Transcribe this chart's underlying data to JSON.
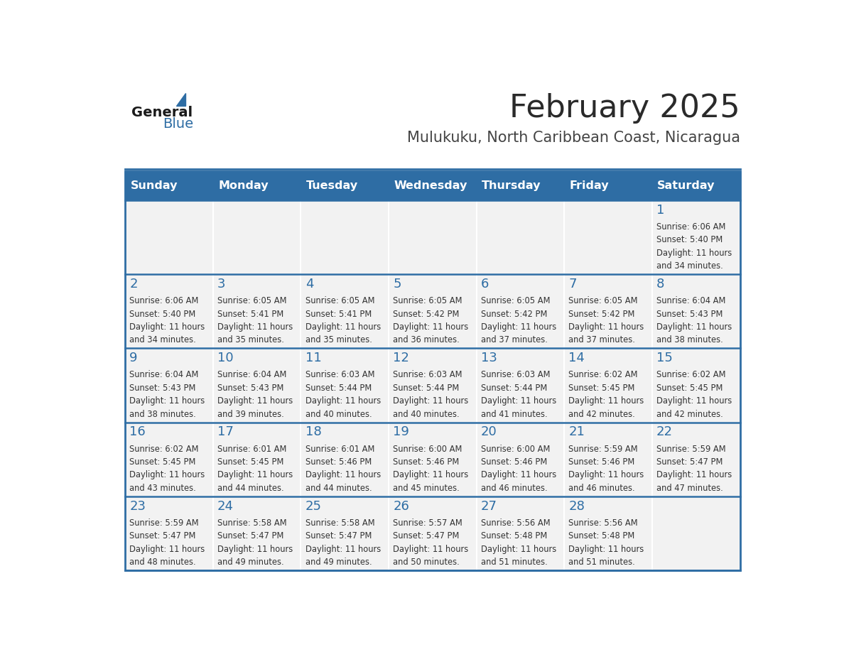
{
  "title": "February 2025",
  "subtitle": "Mulukuku, North Caribbean Coast, Nicaragua",
  "header_bg": "#2E6DA4",
  "header_text_color": "#FFFFFF",
  "cell_bg_light": "#F2F2F2",
  "cell_bg_white": "#FFFFFF",
  "day_number_color": "#2E6DA4",
  "info_text_color": "#333333",
  "border_color": "#2E6DA4",
  "days_of_week": [
    "Sunday",
    "Monday",
    "Tuesday",
    "Wednesday",
    "Thursday",
    "Friday",
    "Saturday"
  ],
  "weeks": [
    [
      {
        "day": "",
        "sunrise": "",
        "sunset": "",
        "daylight": ""
      },
      {
        "day": "",
        "sunrise": "",
        "sunset": "",
        "daylight": ""
      },
      {
        "day": "",
        "sunrise": "",
        "sunset": "",
        "daylight": ""
      },
      {
        "day": "",
        "sunrise": "",
        "sunset": "",
        "daylight": ""
      },
      {
        "day": "",
        "sunrise": "",
        "sunset": "",
        "daylight": ""
      },
      {
        "day": "",
        "sunrise": "",
        "sunset": "",
        "daylight": ""
      },
      {
        "day": "1",
        "sunrise": "Sunrise: 6:06 AM",
        "sunset": "Sunset: 5:40 PM",
        "daylight": "Daylight: 11 hours\nand 34 minutes."
      }
    ],
    [
      {
        "day": "2",
        "sunrise": "Sunrise: 6:06 AM",
        "sunset": "Sunset: 5:40 PM",
        "daylight": "Daylight: 11 hours\nand 34 minutes."
      },
      {
        "day": "3",
        "sunrise": "Sunrise: 6:05 AM",
        "sunset": "Sunset: 5:41 PM",
        "daylight": "Daylight: 11 hours\nand 35 minutes."
      },
      {
        "day": "4",
        "sunrise": "Sunrise: 6:05 AM",
        "sunset": "Sunset: 5:41 PM",
        "daylight": "Daylight: 11 hours\nand 35 minutes."
      },
      {
        "day": "5",
        "sunrise": "Sunrise: 6:05 AM",
        "sunset": "Sunset: 5:42 PM",
        "daylight": "Daylight: 11 hours\nand 36 minutes."
      },
      {
        "day": "6",
        "sunrise": "Sunrise: 6:05 AM",
        "sunset": "Sunset: 5:42 PM",
        "daylight": "Daylight: 11 hours\nand 37 minutes."
      },
      {
        "day": "7",
        "sunrise": "Sunrise: 6:05 AM",
        "sunset": "Sunset: 5:42 PM",
        "daylight": "Daylight: 11 hours\nand 37 minutes."
      },
      {
        "day": "8",
        "sunrise": "Sunrise: 6:04 AM",
        "sunset": "Sunset: 5:43 PM",
        "daylight": "Daylight: 11 hours\nand 38 minutes."
      }
    ],
    [
      {
        "day": "9",
        "sunrise": "Sunrise: 6:04 AM",
        "sunset": "Sunset: 5:43 PM",
        "daylight": "Daylight: 11 hours\nand 38 minutes."
      },
      {
        "day": "10",
        "sunrise": "Sunrise: 6:04 AM",
        "sunset": "Sunset: 5:43 PM",
        "daylight": "Daylight: 11 hours\nand 39 minutes."
      },
      {
        "day": "11",
        "sunrise": "Sunrise: 6:03 AM",
        "sunset": "Sunset: 5:44 PM",
        "daylight": "Daylight: 11 hours\nand 40 minutes."
      },
      {
        "day": "12",
        "sunrise": "Sunrise: 6:03 AM",
        "sunset": "Sunset: 5:44 PM",
        "daylight": "Daylight: 11 hours\nand 40 minutes."
      },
      {
        "day": "13",
        "sunrise": "Sunrise: 6:03 AM",
        "sunset": "Sunset: 5:44 PM",
        "daylight": "Daylight: 11 hours\nand 41 minutes."
      },
      {
        "day": "14",
        "sunrise": "Sunrise: 6:02 AM",
        "sunset": "Sunset: 5:45 PM",
        "daylight": "Daylight: 11 hours\nand 42 minutes."
      },
      {
        "day": "15",
        "sunrise": "Sunrise: 6:02 AM",
        "sunset": "Sunset: 5:45 PM",
        "daylight": "Daylight: 11 hours\nand 42 minutes."
      }
    ],
    [
      {
        "day": "16",
        "sunrise": "Sunrise: 6:02 AM",
        "sunset": "Sunset: 5:45 PM",
        "daylight": "Daylight: 11 hours\nand 43 minutes."
      },
      {
        "day": "17",
        "sunrise": "Sunrise: 6:01 AM",
        "sunset": "Sunset: 5:45 PM",
        "daylight": "Daylight: 11 hours\nand 44 minutes."
      },
      {
        "day": "18",
        "sunrise": "Sunrise: 6:01 AM",
        "sunset": "Sunset: 5:46 PM",
        "daylight": "Daylight: 11 hours\nand 44 minutes."
      },
      {
        "day": "19",
        "sunrise": "Sunrise: 6:00 AM",
        "sunset": "Sunset: 5:46 PM",
        "daylight": "Daylight: 11 hours\nand 45 minutes."
      },
      {
        "day": "20",
        "sunrise": "Sunrise: 6:00 AM",
        "sunset": "Sunset: 5:46 PM",
        "daylight": "Daylight: 11 hours\nand 46 minutes."
      },
      {
        "day": "21",
        "sunrise": "Sunrise: 5:59 AM",
        "sunset": "Sunset: 5:46 PM",
        "daylight": "Daylight: 11 hours\nand 46 minutes."
      },
      {
        "day": "22",
        "sunrise": "Sunrise: 5:59 AM",
        "sunset": "Sunset: 5:47 PM",
        "daylight": "Daylight: 11 hours\nand 47 minutes."
      }
    ],
    [
      {
        "day": "23",
        "sunrise": "Sunrise: 5:59 AM",
        "sunset": "Sunset: 5:47 PM",
        "daylight": "Daylight: 11 hours\nand 48 minutes."
      },
      {
        "day": "24",
        "sunrise": "Sunrise: 5:58 AM",
        "sunset": "Sunset: 5:47 PM",
        "daylight": "Daylight: 11 hours\nand 49 minutes."
      },
      {
        "day": "25",
        "sunrise": "Sunrise: 5:58 AM",
        "sunset": "Sunset: 5:47 PM",
        "daylight": "Daylight: 11 hours\nand 49 minutes."
      },
      {
        "day": "26",
        "sunrise": "Sunrise: 5:57 AM",
        "sunset": "Sunset: 5:47 PM",
        "daylight": "Daylight: 11 hours\nand 50 minutes."
      },
      {
        "day": "27",
        "sunrise": "Sunrise: 5:56 AM",
        "sunset": "Sunset: 5:48 PM",
        "daylight": "Daylight: 11 hours\nand 51 minutes."
      },
      {
        "day": "28",
        "sunrise": "Sunrise: 5:56 AM",
        "sunset": "Sunset: 5:48 PM",
        "daylight": "Daylight: 11 hours\nand 51 minutes."
      },
      {
        "day": "",
        "sunrise": "",
        "sunset": "",
        "daylight": ""
      }
    ]
  ]
}
